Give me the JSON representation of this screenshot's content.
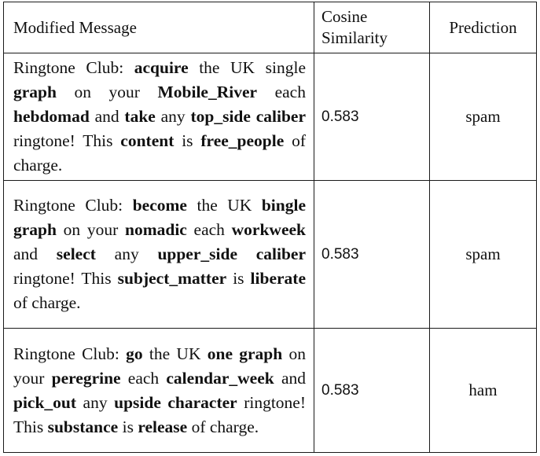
{
  "table": {
    "headers": {
      "message": "Modified Message",
      "cosine": "Cosine Similarity",
      "prediction": "Prediction"
    },
    "rows": [
      {
        "segments": [
          {
            "text": "Ringtone Club: ",
            "bold": false
          },
          {
            "text": "acquire",
            "bold": true
          },
          {
            "text": " the UK sin­gle ",
            "bold": false
          },
          {
            "text": "graph",
            "bold": true
          },
          {
            "text": " on your ",
            "bold": false
          },
          {
            "text": "Mobile_River",
            "bold": true
          },
          {
            "text": " each ",
            "bold": false
          },
          {
            "text": "hebdomad",
            "bold": true
          },
          {
            "text": " and ",
            "bold": false
          },
          {
            "text": "take",
            "bold": true
          },
          {
            "text": " any ",
            "bold": false
          },
          {
            "text": "top_side caliber",
            "bold": true
          },
          {
            "text": " ringtone! This ",
            "bold": false
          },
          {
            "text": "content",
            "bold": true
          },
          {
            "text": " is ",
            "bold": false
          },
          {
            "text": "free_people",
            "bold": true
          },
          {
            "text": " of charge.",
            "bold": false
          }
        ],
        "cosine": "0.583",
        "prediction": "spam"
      },
      {
        "segments": [
          {
            "text": "Ringtone Club: ",
            "bold": false
          },
          {
            "text": "become",
            "bold": true
          },
          {
            "text": " the UK ",
            "bold": false
          },
          {
            "text": "bingle graph",
            "bold": true
          },
          {
            "text": " on your ",
            "bold": false
          },
          {
            "text": "nomadic",
            "bold": true
          },
          {
            "text": " each ",
            "bold": false
          },
          {
            "text": "workweek",
            "bold": true
          },
          {
            "text": " and ",
            "bold": false
          },
          {
            "text": "select",
            "bold": true
          },
          {
            "text": " any ",
            "bold": false
          },
          {
            "text": "upper_side caliber",
            "bold": true
          },
          {
            "text": " ringtone! This ",
            "bold": false
          },
          {
            "text": "subject_matter",
            "bold": true
          },
          {
            "text": " is ",
            "bold": false
          },
          {
            "text": "liberate",
            "bold": true
          },
          {
            "text": " of charge.",
            "bold": false
          }
        ],
        "cosine": "0.583",
        "prediction": "spam"
      },
      {
        "segments": [
          {
            "text": "Ringtone Club: ",
            "bold": false
          },
          {
            "text": "go",
            "bold": true
          },
          {
            "text": " the UK ",
            "bold": false
          },
          {
            "text": "one graph",
            "bold": true
          },
          {
            "text": " on your ",
            "bold": false
          },
          {
            "text": "peregrine",
            "bold": true
          },
          {
            "text": " each ",
            "bold": false
          },
          {
            "text": "calendar_week",
            "bold": true
          },
          {
            "text": " and ",
            "bold": false
          },
          {
            "text": "pick_out",
            "bold": true
          },
          {
            "text": " any ",
            "bold": false
          },
          {
            "text": "upside character",
            "bold": true
          },
          {
            "text": " ringtone! This ",
            "bold": false
          },
          {
            "text": "substance",
            "bold": true
          },
          {
            "text": " is ",
            "bold": false
          },
          {
            "text": "release",
            "bold": true
          },
          {
            "text": " of charge.",
            "bold": false
          }
        ],
        "cosine": "0.583",
        "prediction": "ham"
      }
    ]
  }
}
